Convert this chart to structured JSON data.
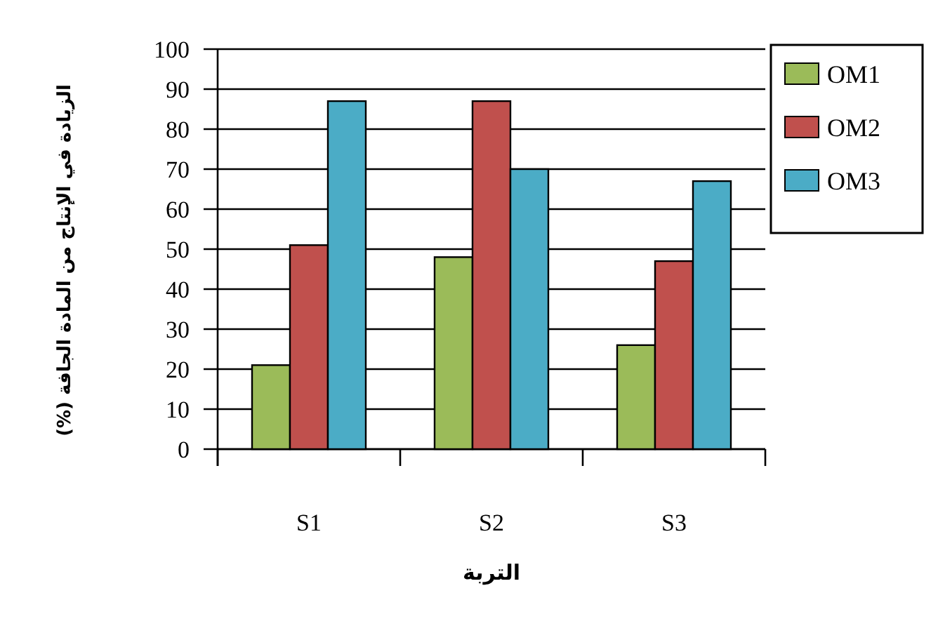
{
  "chart_data": {
    "type": "bar",
    "xlabel": "التربة",
    "ylabel": "الزيادة في الإنتاج من المادة الجافة (%)",
    "categories": [
      "S1",
      "S2",
      "S3"
    ],
    "series": [
      {
        "name": "OM1",
        "color": "#9bbb59",
        "values": [
          21,
          48,
          26
        ]
      },
      {
        "name": "OM2",
        "color": "#c0504d",
        "values": [
          51,
          87,
          47
        ]
      },
      {
        "name": "OM3",
        "color": "#4bacc6",
        "values": [
          87,
          70,
          67
        ]
      }
    ],
    "ylim": [
      0,
      100
    ],
    "yticks": [
      0,
      10,
      20,
      30,
      40,
      50,
      60,
      70,
      80,
      90,
      100
    ],
    "grid": "y",
    "legend": "top right"
  }
}
